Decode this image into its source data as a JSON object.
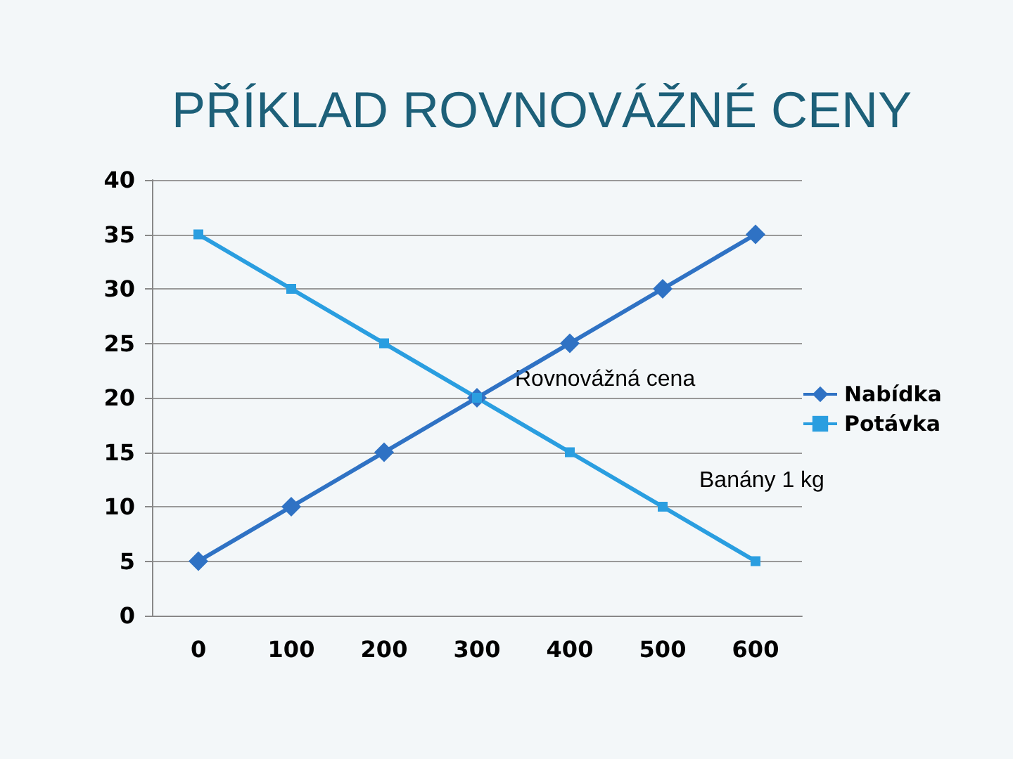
{
  "chart_data": {
    "type": "line",
    "title": "PŘÍKLAD ROVNOVÁŽNÉ CENY",
    "categories": [
      "0",
      "100",
      "200",
      "300",
      "400",
      "500",
      "600"
    ],
    "series": [
      {
        "name": "Nabídka",
        "color": "#2f72c4",
        "marker": "diamond",
        "values": [
          5,
          10,
          15,
          20,
          25,
          30,
          35
        ]
      },
      {
        "name": "Potávka",
        "color": "#2a9ee0",
        "marker": "square",
        "values": [
          35,
          30,
          25,
          20,
          15,
          10,
          5
        ]
      }
    ],
    "ylim": [
      0,
      40
    ],
    "yticks": [
      0,
      5,
      10,
      15,
      20,
      25,
      30,
      35,
      40
    ],
    "grid": "y",
    "legend": "right",
    "annotations": [
      "Rovnovážná cena",
      "Banány 1 kg"
    ]
  }
}
